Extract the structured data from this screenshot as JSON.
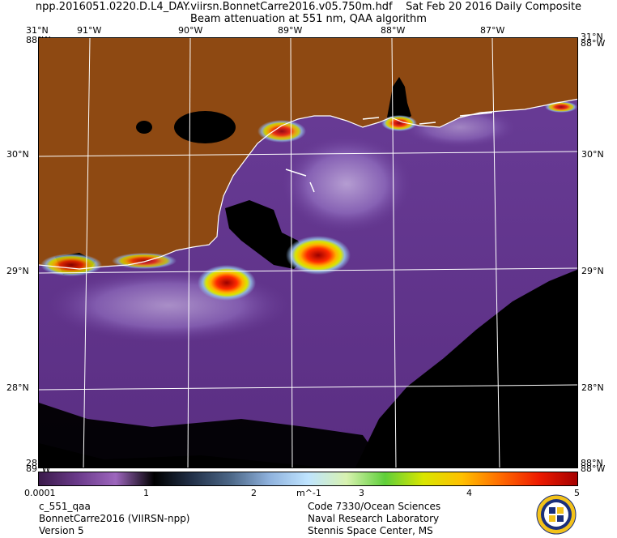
{
  "title": {
    "line1": "npp.2016051.0220.D.L4_DAY.viirsn.BonnetCarre2016.v05.750m.hdf    Sat Feb 20 2016 Daily Composite",
    "line2": "Beam attenuation at 551 nm, QAA algorithm"
  },
  "top_lon_labels": [
    "91°W",
    "90°W",
    "89°W",
    "88°W",
    "87°W"
  ],
  "left_lat_labels": [
    "30°N",
    "29°N",
    "28°N"
  ],
  "right_lat_labels": [
    "30°N",
    "29°N",
    "28°N"
  ],
  "corner_labels": {
    "top_left_lat": "31°N",
    "top_left_lon": "88°W",
    "top_right_lat": "31°N",
    "top_right_lon": "88°W",
    "bottom_left_lat": "28°N",
    "bottom_left_lon": "89°W",
    "bottom_right_lat": "88°N",
    "bottom_right_lon": "88°W"
  },
  "colorbar": {
    "labels": [
      "0.0001",
      "1",
      "2",
      "m^-1",
      "3",
      "4",
      "5"
    ],
    "min_label": "0.0001",
    "max_label": "5",
    "units": "m^-1",
    "colors": [
      "#3a1a4a",
      "#6a3a8a",
      "#9d66bd",
      "#000000",
      "#23324a",
      "#4d6888",
      "#8fb2dd",
      "#bfe4ff",
      "#d8f2b0",
      "#5fcf3a",
      "#d9e600",
      "#ffc000",
      "#ff6b00",
      "#ee1b00",
      "#a50000"
    ]
  },
  "info_left": [
    "c_551_qaa",
    "BonnetCarre2016 (VIIRSN-npp)",
    "Version 5"
  ],
  "info_right": [
    "Code 7330/Ocean Sciences",
    "Naval Research Laboratory",
    "Stennis Space Center, MS"
  ],
  "colors": {
    "land": "#8e4912",
    "no_data": "#000000",
    "water_low": "#6c3f96",
    "gridline": "#ffffff",
    "coastline": "#ffffff"
  },
  "seal_name": "navy-seal-logo"
}
